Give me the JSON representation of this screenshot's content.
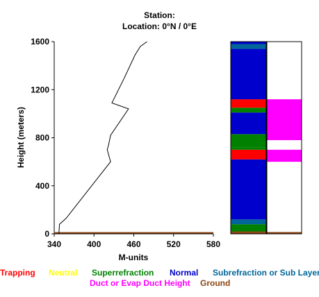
{
  "header": {
    "station": "Station:",
    "location": "Location:   0°N /   0°E"
  },
  "chart_data": {
    "type": "line",
    "title": "",
    "xlabel": "M-units",
    "ylabel": "Height (meters)",
    "xlim": [
      340,
      580
    ],
    "ylim": [
      0,
      1600
    ],
    "x_ticks": [
      "340",
      "400",
      "460",
      "520",
      "580"
    ],
    "y_ticks": [
      "0",
      "400",
      "800",
      "1200",
      "1600"
    ],
    "grid": false,
    "ground_line_color": "#8b4513",
    "series": [
      {
        "points": [
          [
            347,
            0
          ],
          [
            348,
            80
          ],
          [
            352,
            100
          ],
          [
            358,
            130
          ],
          [
            425,
            600
          ],
          [
            420,
            700
          ],
          [
            422,
            740
          ],
          [
            425,
            820
          ],
          [
            452,
            1040
          ],
          [
            427,
            1090
          ],
          [
            445,
            1290
          ],
          [
            462,
            1490
          ],
          [
            470,
            1560
          ],
          [
            480,
            1600
          ]
        ]
      }
    ],
    "refractivity_column": {
      "segments": [
        {
          "from": 0,
          "to": 20,
          "color": "#8b4513"
        },
        {
          "from": 20,
          "to": 80,
          "color": "#008000"
        },
        {
          "from": 80,
          "to": 120,
          "color": "#006699"
        },
        {
          "from": 120,
          "to": 620,
          "color": "#0000cc"
        },
        {
          "from": 620,
          "to": 700,
          "color": "#ff0000"
        },
        {
          "from": 700,
          "to": 720,
          "color": "#008000"
        },
        {
          "from": 720,
          "to": 830,
          "color": "#008000"
        },
        {
          "from": 830,
          "to": 1010,
          "color": "#0000cc"
        },
        {
          "from": 1010,
          "to": 1050,
          "color": "#008000"
        },
        {
          "from": 1050,
          "to": 1120,
          "color": "#ff0000"
        },
        {
          "from": 1120,
          "to": 1540,
          "color": "#0000cc"
        },
        {
          "from": 1540,
          "to": 1580,
          "color": "#006699"
        },
        {
          "from": 1580,
          "to": 1600,
          "color": "#0000cc"
        }
      ]
    },
    "duct_column": {
      "segments": [
        {
          "from": 0,
          "to": 15,
          "color": "#8b4513"
        },
        {
          "from": 600,
          "to": 700,
          "color": "#ff00ff"
        },
        {
          "from": 780,
          "to": 1120,
          "color": "#ff00ff"
        }
      ]
    },
    "legend": [
      {
        "label": "Trapping",
        "color": "#ff0000"
      },
      {
        "label": "Neutral",
        "color": "#ffff00"
      },
      {
        "label": "Superrefraction",
        "color": "#008000"
      },
      {
        "label": "Normal",
        "color": "#0000cc"
      },
      {
        "label": "Subrefraction or Sub Layer",
        "color": "#006699"
      },
      {
        "label": "Duct or Evap Duct Height",
        "color": "#ff00ff"
      },
      {
        "label": "Ground",
        "color": "#8b4513"
      }
    ]
  }
}
